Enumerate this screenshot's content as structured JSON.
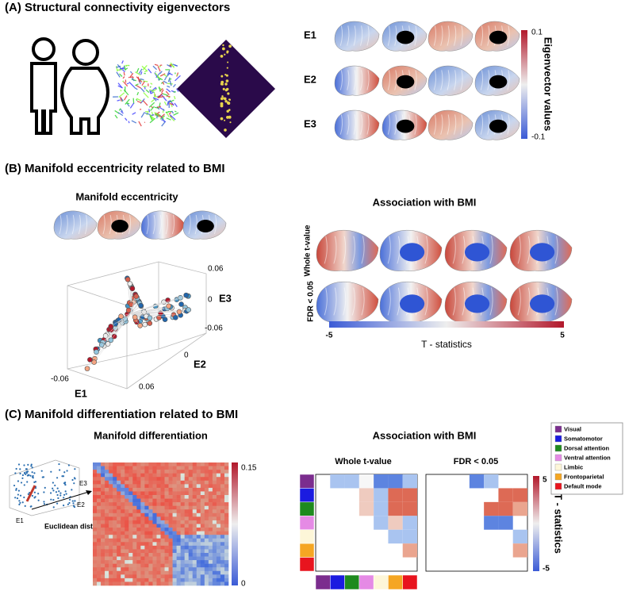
{
  "panel_a": {
    "title": "(A) Structural connectivity eigenvectors",
    "rows": [
      "E1",
      "E2",
      "E3"
    ],
    "colorbar": {
      "max": "0.1",
      "min": "-0.1",
      "label": "Eigenvector values"
    }
  },
  "panel_b": {
    "title": "(B) Manifold eccentricity related to BMI",
    "eccentricity": {
      "title": "Manifold eccentricity",
      "axes": {
        "z_max": "0.06",
        "z_mid": "0",
        "z_min": "-0.06",
        "z_label": "E3",
        "x_min": "-0.06",
        "x_label": "E1",
        "y_mid": "0",
        "y_label": "E2",
        "y_max": "0.06"
      }
    },
    "association": {
      "title": "Association with BMI",
      "rows": [
        "Whole t-value",
        "FDR < 0.05"
      ],
      "colorbar": {
        "min": "-5",
        "max": "5",
        "label": "T - statistics"
      }
    }
  },
  "panel_c": {
    "title": "(C) Manifold differentiation related to BMI",
    "differentiation": {
      "title": "Manifold differentiation",
      "axis_labels": [
        "E3",
        "E2",
        "E1"
      ],
      "distance_label": "Euclidean distance",
      "colorbar": {
        "max": "0.15",
        "min": "0"
      }
    },
    "association": {
      "title": "Association with BMI",
      "matrices": [
        "Whole t-value",
        "FDR < 0.05"
      ],
      "colorbar": {
        "max": "5",
        "min": "-5",
        "label": "T - statistics"
      }
    },
    "legend": [
      {
        "label": "Visual",
        "color": "#7b2d8e"
      },
      {
        "label": "Somatomotor",
        "color": "#1b1be0"
      },
      {
        "label": "Dorsal attention",
        "color": "#1e8a1e"
      },
      {
        "label": "Ventral attention",
        "color": "#e58ae5"
      },
      {
        "label": "Limbic",
        "color": "#fdf6d8"
      },
      {
        "label": "Frontoparietal",
        "color": "#f5a623"
      },
      {
        "label": "Default mode",
        "color": "#e8141e"
      }
    ]
  }
}
